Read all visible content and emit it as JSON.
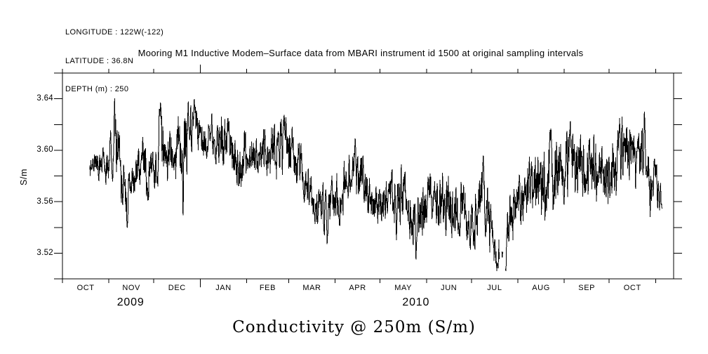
{
  "page": {
    "background": "#ffffff",
    "ink": "#000000"
  },
  "header": {
    "lines": [
      "LONGITUDE : 122W(-122)",
      "LATITUDE : 36.8N",
      "DEPTH (m) : 250"
    ]
  },
  "title": "Mooring M1 Inductive Modem–Surface data from MBARI instrument id 1500 at original sampling intervals",
  "footer_label": "Conductivity @ 250m (S/m)",
  "chart_data": {
    "type": "line",
    "title": "Mooring M1 Inductive Modem–Surface data from MBARI instrument id 1500 at original sampling intervals",
    "ylabel": "S/m",
    "xlabel": "Conductivity @ 250m (S/m)",
    "grid": false,
    "legend": false,
    "x_unit": "days since 1 OCT 2009",
    "xlim_days": [
      0,
      408
    ],
    "ylim": [
      3.5,
      3.66
    ],
    "y_tick_step": 0.02,
    "y_labeled_ticks": [
      3.52,
      3.56,
      3.6,
      3.64
    ],
    "month_tick_days": [
      0,
      31,
      61,
      92,
      123,
      151,
      182,
      212,
      243,
      273,
      304,
      335,
      365,
      396
    ],
    "month_labels": [
      "OCT",
      "NOV",
      "DEC",
      "JAN",
      "FEB",
      "MAR",
      "APR",
      "MAY",
      "JUN",
      "JUL",
      "AUG",
      "SEP",
      "OCT"
    ],
    "year_boundary_tick_day": 92,
    "year_labels": [
      {
        "text": "2009",
        "day": 45.5
      },
      {
        "text": "2010",
        "day": 236
      }
    ],
    "series": {
      "name": "conductivity_S_per_m",
      "data_start_day": 18.3,
      "data_end_day": 400.4,
      "sample_step_days": 0.18,
      "envelope_day_mean_amp": [
        [
          18.3,
          3.588,
          0.012
        ],
        [
          28.6,
          3.588,
          0.014
        ],
        [
          33.3,
          3.598,
          0.02
        ],
        [
          34.7,
          3.606,
          0.034
        ],
        [
          37.0,
          3.598,
          0.024
        ],
        [
          40.3,
          3.578,
          0.028
        ],
        [
          43.2,
          3.558,
          0.022
        ],
        [
          47.3,
          3.578,
          0.018
        ],
        [
          52.9,
          3.59,
          0.022
        ],
        [
          59.0,
          3.578,
          0.02
        ],
        [
          65.1,
          3.604,
          0.028
        ],
        [
          70.7,
          3.592,
          0.024
        ],
        [
          77.8,
          3.6,
          0.025
        ],
        [
          80.6,
          3.59,
          0.045
        ],
        [
          84.8,
          3.618,
          0.022
        ],
        [
          90.9,
          3.615,
          0.022
        ],
        [
          98.8,
          3.612,
          0.02
        ],
        [
          105.9,
          3.61,
          0.022
        ],
        [
          112.9,
          3.6,
          0.02
        ],
        [
          118.1,
          3.592,
          0.026
        ],
        [
          124.6,
          3.6,
          0.016
        ],
        [
          132.6,
          3.6,
          0.02
        ],
        [
          141.0,
          3.598,
          0.022
        ],
        [
          148.5,
          3.605,
          0.026
        ],
        [
          154.1,
          3.6,
          0.02
        ],
        [
          160.7,
          3.582,
          0.02
        ],
        [
          168.2,
          3.562,
          0.016
        ],
        [
          176.6,
          3.556,
          0.022
        ],
        [
          183.2,
          3.56,
          0.02
        ],
        [
          189.7,
          3.572,
          0.024
        ],
        [
          195.3,
          3.588,
          0.022
        ],
        [
          201.9,
          3.572,
          0.02
        ],
        [
          209.4,
          3.56,
          0.016
        ],
        [
          216.9,
          3.565,
          0.02
        ],
        [
          223.4,
          3.558,
          0.026
        ],
        [
          230.0,
          3.565,
          0.024
        ],
        [
          235.6,
          3.545,
          0.028
        ],
        [
          244.0,
          3.558,
          0.02
        ],
        [
          251.5,
          3.565,
          0.024
        ],
        [
          259.0,
          3.553,
          0.026
        ],
        [
          266.5,
          3.558,
          0.02
        ],
        [
          274.0,
          3.545,
          0.025
        ],
        [
          280.6,
          3.572,
          0.026
        ],
        [
          286.2,
          3.538,
          0.025
        ],
        [
          289.9,
          3.518,
          0.012
        ],
        [
          295.6,
          3.524,
          0.024
        ],
        [
          299.3,
          3.548,
          0.022
        ],
        [
          305.9,
          3.56,
          0.022
        ],
        [
          312.4,
          3.572,
          0.026
        ],
        [
          319.0,
          3.572,
          0.028
        ],
        [
          325.5,
          3.576,
          0.032
        ],
        [
          332.1,
          3.582,
          0.028
        ],
        [
          338.6,
          3.59,
          0.028
        ],
        [
          345.2,
          3.585,
          0.025
        ],
        [
          351.7,
          3.59,
          0.026
        ],
        [
          358.8,
          3.585,
          0.026
        ],
        [
          365.8,
          3.577,
          0.026
        ],
        [
          372.3,
          3.6,
          0.028
        ],
        [
          378.9,
          3.602,
          0.022
        ],
        [
          385.4,
          3.59,
          0.028
        ],
        [
          388.7,
          3.608,
          0.026
        ],
        [
          392.0,
          3.572,
          0.022
        ],
        [
          396.7,
          3.572,
          0.02
        ],
        [
          400.4,
          3.558,
          0.012
        ]
      ],
      "extremes_day_value": [
        [
          34.8,
          3.645
        ],
        [
          43.2,
          3.54
        ],
        [
          65.5,
          3.638
        ],
        [
          80.5,
          3.54
        ],
        [
          84.0,
          3.638
        ],
        [
          88.0,
          3.64
        ],
        [
          148.0,
          3.628
        ],
        [
          176.7,
          3.527
        ],
        [
          195.4,
          3.61
        ],
        [
          223.0,
          3.528
        ],
        [
          236.0,
          3.512
        ],
        [
          274.5,
          3.524
        ],
        [
          281.0,
          3.601
        ],
        [
          290.5,
          3.51
        ],
        [
          296.0,
          3.506
        ],
        [
          326.0,
          3.622
        ],
        [
          339.0,
          3.623
        ],
        [
          372.0,
          3.625
        ],
        [
          388.5,
          3.633
        ],
        [
          400.4,
          3.555
        ]
      ],
      "gap": {
        "start_day": 291.6,
        "end_day": 295.6,
        "blip_day": 293.6,
        "blip_value": 3.518
      }
    }
  }
}
